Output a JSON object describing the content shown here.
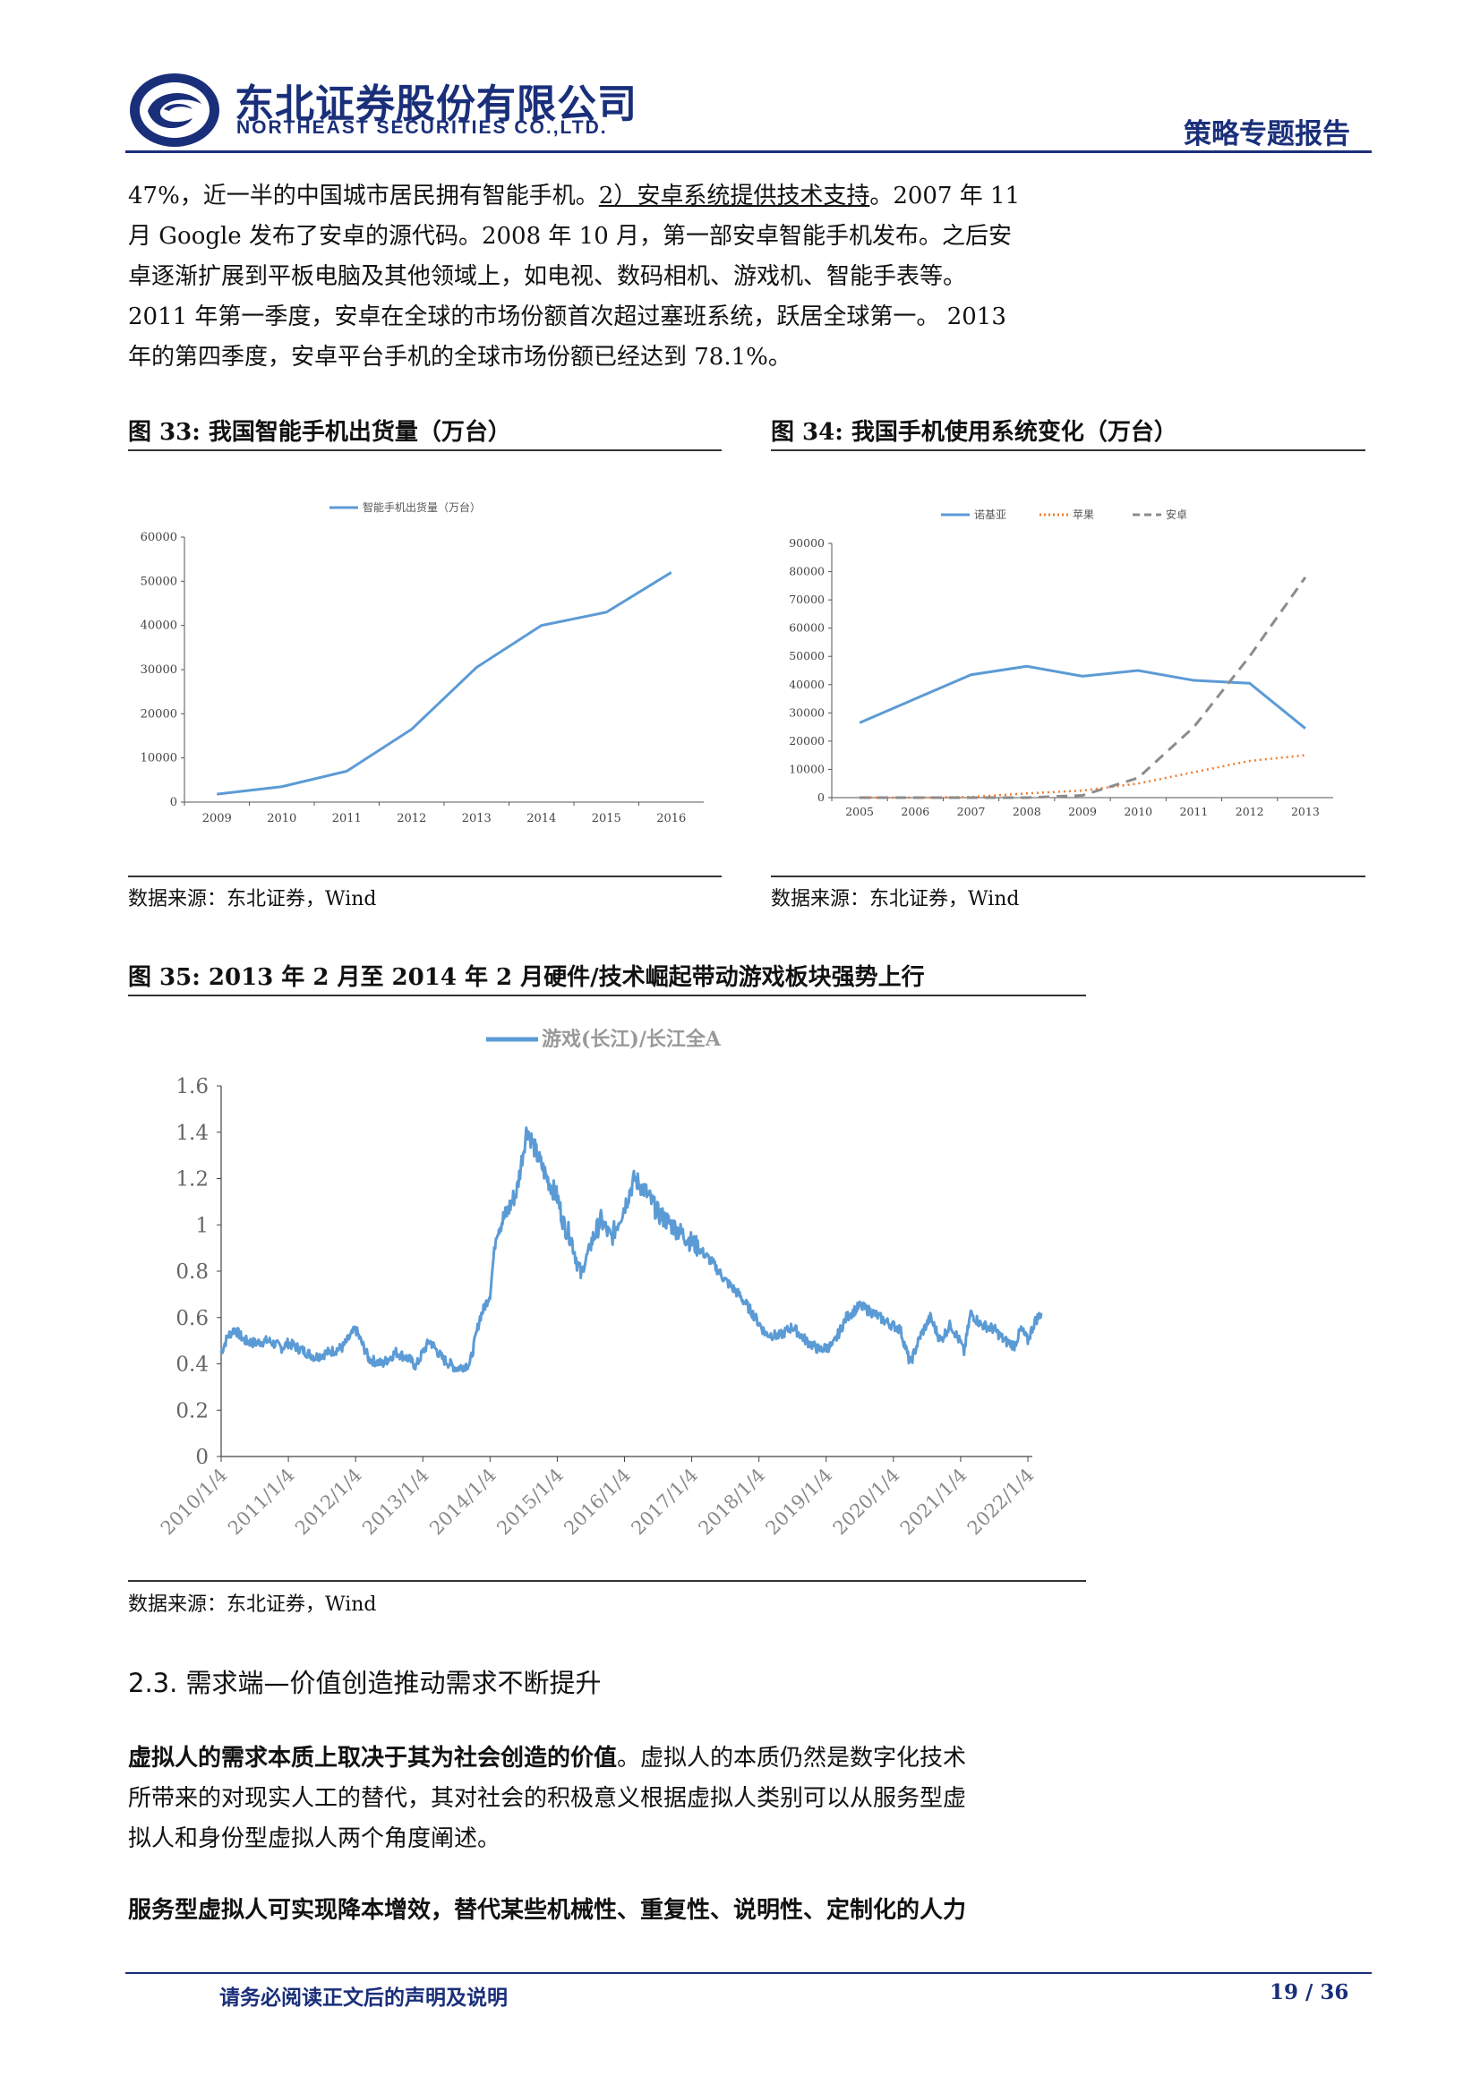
{
  "header": {
    "company_cn": "东北证券股份有限公司",
    "company_en": "NORTHEAST SECURITIES CO.,LTD.",
    "report_type": "策略专题报告"
  },
  "intro": {
    "line1_a": "47%，近一半的中国城市居民拥有智能手机。",
    "line1_b": "2）安卓系统提供技术支持",
    "line1_c": "。2007 年 11",
    "line2": "月 Google 发布了安卓的源代码。2008 年 10 月，第一部安卓智能手机发布。之后安",
    "line3": "卓逐渐扩展到平板电脑及其他领域上，如电视、数码相机、游戏机、智能手表等。",
    "line4": "2011 年第一季度，安卓在全球的市场份额首次超过塞班系统，跃居全球第一。 2013",
    "line5": "年的第四季度，安卓平台手机的全球市场份额已经达到 78.1%。"
  },
  "fig33": {
    "title": "图 33:  我国智能手机出货量（万台）",
    "source": "数据来源：东北证券，Wind"
  },
  "fig34": {
    "title": "图 34:  我国手机使用系统变化（万台）",
    "source": "数据来源：东北证券，Wind"
  },
  "fig35": {
    "title": "图 35:  2013 年 2 月至 2014 年 2 月硬件/技术崛起带动游戏板块强势上行",
    "source": "数据来源：东北证券，Wind"
  },
  "section": {
    "heading": "2.3.  需求端—价值创造推动需求不断提升"
  },
  "body": {
    "p1_bold": "虚拟人的需求本质上取决于其为社会创造的价值",
    "p1_rest": "。虚拟人的本质仍然是数字化技术",
    "p1_line2": "所带来的对现实人工的替代，其对社会的积极意义根据虚拟人类别可以从服务型虚",
    "p1_line3": "拟人和身份型虚拟人两个角度阐述。",
    "p2": "服务型虚拟人可实现降本增效，替代某些机械性、重复性、说明性、定制化的人力"
  },
  "footer": {
    "notice": "请务必阅读正文后的声明及说明",
    "page": "19 / 36"
  },
  "chart_data": [
    {
      "type": "line",
      "title": "",
      "series": [
        {
          "name": "智能手机出货量（万台）",
          "color": "#5b9bd5",
          "x": [
            "2009",
            "2010",
            "2011",
            "2012",
            "2013",
            "2014",
            "2015",
            "2016"
          ],
          "values": [
            1800,
            3500,
            7000,
            16500,
            30500,
            40000,
            43000,
            52000
          ]
        }
      ],
      "ylim": [
        0,
        60000
      ],
      "yticks": [
        "0",
        "10000",
        "20000",
        "30000",
        "40000",
        "50000",
        "60000"
      ],
      "legend": "top"
    },
    {
      "type": "line",
      "title": "",
      "categories": [
        "2005",
        "2006",
        "2007",
        "2008",
        "2009",
        "2010",
        "2011",
        "2012",
        "2013"
      ],
      "series": [
        {
          "name": "诺基亚",
          "color": "#5b9bd5",
          "style": "solid",
          "values": [
            26500,
            35000,
            43500,
            46500,
            43000,
            45000,
            41500,
            40500,
            24500
          ]
        },
        {
          "name": "苹果",
          "color": "#ed7d31",
          "style": "dotted",
          "values": [
            0,
            0,
            200,
            1500,
            2500,
            5000,
            9000,
            13000,
            15000
          ]
        },
        {
          "name": "安卓",
          "color": "#8c8c8c",
          "style": "dashed",
          "values": [
            0,
            0,
            0,
            0,
            800,
            7000,
            25000,
            50000,
            78000
          ]
        }
      ],
      "ylim": [
        0,
        90000
      ],
      "yticks": [
        "0",
        "10000",
        "20000",
        "30000",
        "40000",
        "50000",
        "60000",
        "70000",
        "80000",
        "90000"
      ],
      "legend": "top"
    },
    {
      "type": "line",
      "title": "",
      "x_ticks": [
        "2010/1/4",
        "2011/1/4",
        "2012/1/4",
        "2013/1/4",
        "2014/1/4",
        "2015/1/4",
        "2016/1/4",
        "2017/1/4",
        "2018/1/4",
        "2019/1/4",
        "2020/1/4",
        "2021/1/4",
        "2022/1/4"
      ],
      "series": [
        {
          "name": "游戏(长江)/长江全A",
          "color": "#5b9bd5",
          "x": [
            2010.0,
            2010.1,
            2010.2,
            2010.35,
            2010.5,
            2010.7,
            2010.9,
            2011.0,
            2011.2,
            2011.4,
            2011.6,
            2011.8,
            2012.0,
            2012.2,
            2012.4,
            2012.6,
            2012.8,
            2012.9,
            2013.0,
            2013.1,
            2013.3,
            2013.5,
            2013.7,
            2013.85,
            2014.0,
            2014.05,
            2014.1,
            2014.25,
            2014.4,
            2014.55,
            2014.7,
            2014.85,
            2015.0,
            2015.1,
            2015.2,
            2015.35,
            2015.5,
            2015.65,
            2015.8,
            2016.0,
            2016.15,
            2016.3,
            2016.5,
            2016.7,
            2016.9,
            2017.1,
            2017.3,
            2017.5,
            2017.7,
            2017.9,
            2018.1,
            2018.3,
            2018.5,
            2018.7,
            2018.9,
            2019.1,
            2019.3,
            2019.5,
            2019.7,
            2019.9,
            2020.1,
            2020.25,
            2020.4,
            2020.55,
            2020.7,
            2020.85,
            2021.0,
            2021.05,
            2021.15,
            2021.3,
            2021.5,
            2021.65,
            2021.8,
            2021.9,
            2022.0,
            2022.1,
            2022.2
          ],
          "values": [
            0.45,
            0.52,
            0.55,
            0.5,
            0.49,
            0.5,
            0.47,
            0.49,
            0.46,
            0.43,
            0.45,
            0.47,
            0.55,
            0.42,
            0.4,
            0.45,
            0.42,
            0.39,
            0.45,
            0.5,
            0.42,
            0.38,
            0.4,
            0.6,
            0.7,
            0.85,
            0.98,
            1.05,
            1.15,
            1.42,
            1.3,
            1.2,
            1.12,
            1.0,
            0.95,
            0.78,
            0.92,
            1.02,
            0.94,
            1.08,
            1.2,
            1.15,
            1.05,
            1.0,
            0.95,
            0.9,
            0.84,
            0.76,
            0.7,
            0.62,
            0.53,
            0.52,
            0.56,
            0.5,
            0.46,
            0.48,
            0.6,
            0.65,
            0.62,
            0.58,
            0.55,
            0.4,
            0.52,
            0.6,
            0.5,
            0.57,
            0.49,
            0.45,
            0.62,
            0.57,
            0.55,
            0.5,
            0.48,
            0.55,
            0.5,
            0.58,
            0.62
          ],
          "values_note": ""
        }
      ],
      "ylim": [
        0,
        1.6
      ],
      "yticks": [
        "0",
        "0.2",
        "0.4",
        "0.6",
        "0.8",
        "1",
        "1.2",
        "1.4",
        "1.6"
      ],
      "legend": "top"
    }
  ]
}
